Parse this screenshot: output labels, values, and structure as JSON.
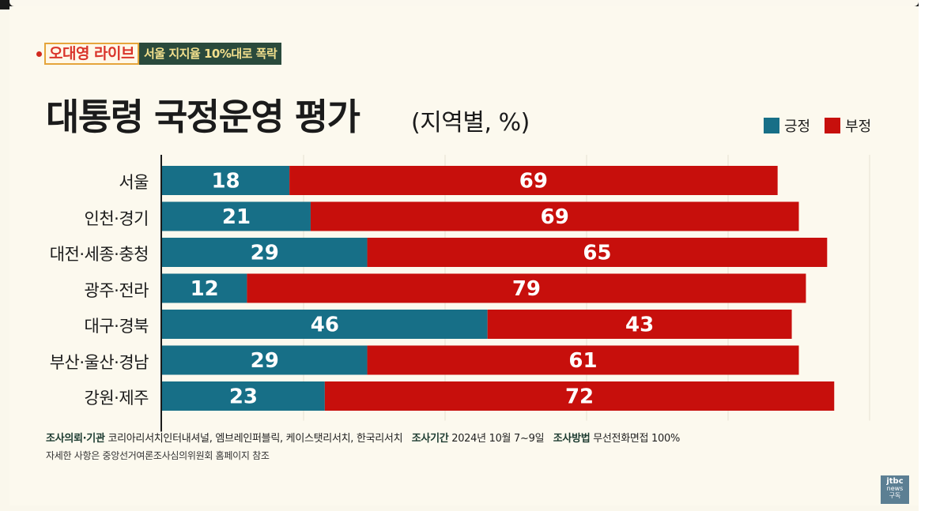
{
  "badge": {
    "program": "오대영 라이브",
    "headline": "서울 지지율 10%대로 폭락"
  },
  "header": {
    "title": "대통령 국정운영 평가",
    "subtitle": "(지역별, %)"
  },
  "legend": {
    "positive": "긍정",
    "negative": "부정"
  },
  "colors": {
    "positive": "#176f87",
    "negative": "#c70f0c"
  },
  "chart_data": {
    "type": "bar",
    "orientation": "horizontal",
    "stacked": true,
    "title": "대통령 국정운영 평가",
    "subtitle": "(지역별, %)",
    "categories": [
      "서울",
      "인천·경기",
      "대전·세종·충청",
      "광주·전라",
      "대구·경북",
      "부산·울산·경남",
      "강원·제주"
    ],
    "series": [
      {
        "name": "긍정",
        "values": [
          18,
          21,
          29,
          12,
          46,
          29,
          23
        ]
      },
      {
        "name": "부정",
        "values": [
          69,
          69,
          65,
          79,
          43,
          61,
          72
        ]
      }
    ],
    "xlim": [
      0,
      100
    ],
    "grid": true,
    "legend_position": "top-right"
  },
  "footer": {
    "client_label": "조사의뢰·기관",
    "client_value": "코리아리서치인터내셔널, 엠브레인퍼블릭, 케이스탯리서치, 한국리서치",
    "period_label": "조사기간",
    "period_value": "2024년 10월 7~9일",
    "method_label": "조사방법",
    "method_value": "무선전화면접 100%",
    "note": "자세한 사항은 중앙선거여론조사심의위원회 홈페이지 참조"
  },
  "watermark": {
    "logo": "jtbc",
    "sub": "news",
    "action": "구독"
  }
}
